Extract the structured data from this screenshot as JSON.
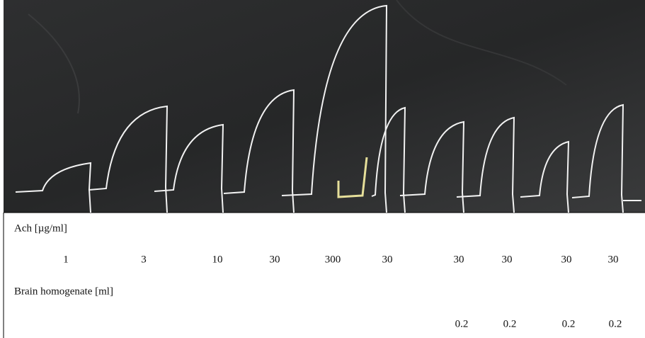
{
  "labels": {
    "ach": "Ach [µg/ml]",
    "brain": "Brain homogenate [ml]"
  },
  "ach_doses": [
    1,
    3,
    10,
    30,
    300,
    30,
    30,
    30,
    30,
    30
  ],
  "brain_doses": [
    0.2,
    0.2,
    0.2,
    0.2
  ]
}
